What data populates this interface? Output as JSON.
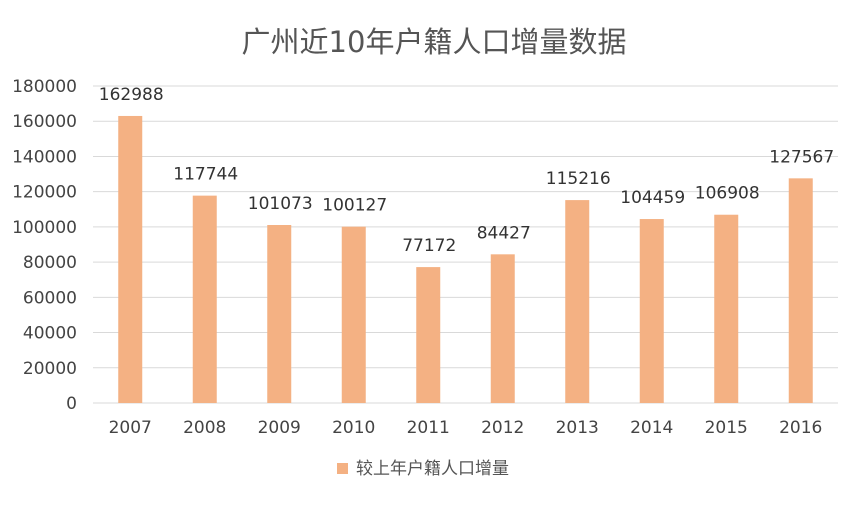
{
  "chart_data": {
    "type": "bar",
    "title": "广州近10年户籍人口增量数据",
    "xlabel": "",
    "ylabel": "",
    "categories": [
      "2007",
      "2008",
      "2009",
      "2010",
      "2011",
      "2012",
      "2013",
      "2014",
      "2015",
      "2016"
    ],
    "series": [
      {
        "name": "较上年户籍人口增量",
        "values": [
          162988,
          117744,
          101073,
          100127,
          77172,
          84427,
          115216,
          104459,
          106908,
          127567
        ],
        "color": "#F4B183"
      }
    ],
    "y_ticks": [
      "0",
      "20000",
      "40000",
      "60000",
      "80000",
      "100000",
      "120000",
      "140000",
      "160000",
      "180000"
    ],
    "ylim": [
      0,
      180000
    ],
    "grid": true,
    "legend_position": "bottom",
    "data_labels": true
  }
}
